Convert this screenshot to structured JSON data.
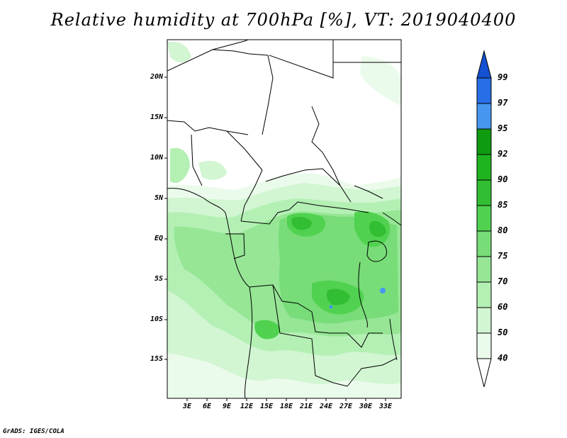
{
  "title": "Relative humidity at 700hPa [%], VT: 2019040400",
  "footer": "GrADS: IGES/COLA",
  "map": {
    "lat_ticks": [
      "20N",
      "15N",
      "10N",
      "5N",
      "EQ",
      "5S",
      "10S",
      "15S"
    ],
    "lon_ticks": [
      "3E",
      "6E",
      "9E",
      "12E",
      "15E",
      "18E",
      "21E",
      "24E",
      "27E",
      "30E",
      "33E"
    ],
    "lon_range": [
      0,
      35
    ],
    "lat_range": [
      -19,
      25
    ]
  },
  "colorbar": {
    "levels": [
      "40",
      "50",
      "60",
      "70",
      "75",
      "80",
      "85",
      "90",
      "92",
      "95",
      "97",
      "99"
    ],
    "colors": [
      "#ffffff",
      "#ebfbeb",
      "#d2f5d2",
      "#b4f0b4",
      "#96e696",
      "#78dc78",
      "#50d250",
      "#32be32",
      "#1eb41e",
      "#0f9b0f",
      "#4696f0",
      "#286ee6",
      "#1450d2"
    ]
  },
  "colors": {
    "land_low": "#ebfbeb",
    "land_mid": "#b4f0b4",
    "land_high": "#50d250",
    "land_peak": "#1eb41e",
    "boundary": "#000000"
  }
}
